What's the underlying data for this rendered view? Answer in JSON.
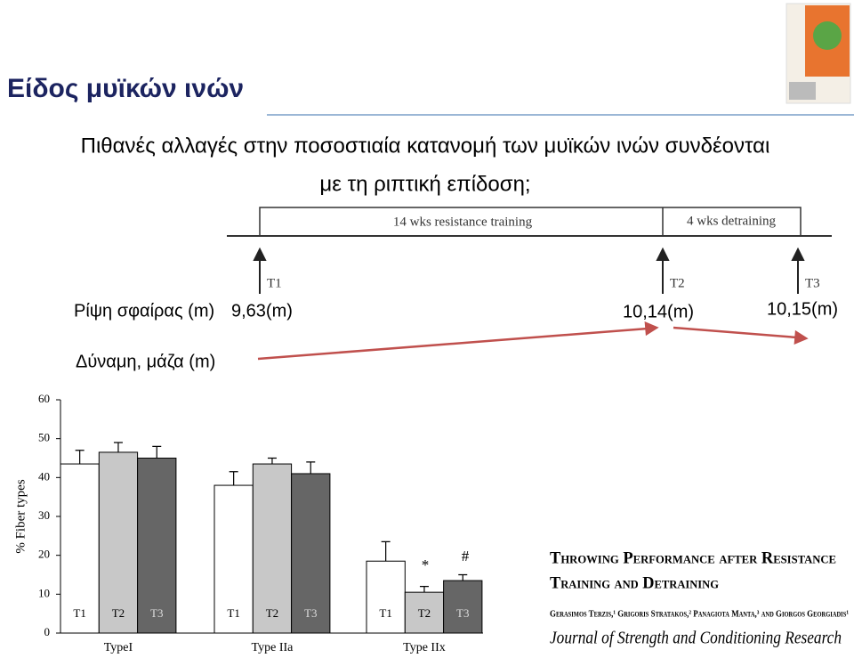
{
  "title": "Είδος μυϊκών ινών",
  "subtitle": [
    "Πιθανές αλλαγές στην ποσοστιαία κατανομή των μυϊκών ινών συνδέονται",
    "με τη ριπτική επίδοση;"
  ],
  "timeline": {
    "phases": [
      "14 wks resistance training",
      "4 wks detraining"
    ],
    "points": [
      "T1",
      "T2",
      "T3"
    ]
  },
  "performance": {
    "label": "Ρίψη σφαίρας (m)",
    "values": [
      "9,63(m)",
      "10,14(m)",
      "10,15(m)"
    ]
  },
  "strength_label": "Δύναμη, μάζα (m)",
  "citation": {
    "title_lines": [
      "Throwing Performance after Resistance",
      "Training and Detraining"
    ],
    "authors": "Gerasimos Terzis,¹ Grigoris Stratakos,² Panagiota Manta,³ and Giorgos Georgiadis¹",
    "journal": "Journal of Strength and Conditioning Research"
  },
  "chart_data": {
    "type": "bar",
    "ylabel": "% Fiber types",
    "categories": [
      "TypeI",
      "Type IIa",
      "Type IIx"
    ],
    "series": [
      {
        "name": "T1",
        "color": "#ffffff",
        "values": [
          43.5,
          38,
          18.5
        ],
        "errors": [
          3.5,
          3.5,
          5
        ]
      },
      {
        "name": "T2",
        "color": "#c8c8c8",
        "values": [
          46.5,
          43.5,
          10.5
        ],
        "errors": [
          2.5,
          1.5,
          1.5
        ]
      },
      {
        "name": "T3",
        "color": "#666666",
        "values": [
          45,
          41,
          13.5
        ],
        "errors": [
          3,
          3,
          1.5
        ]
      }
    ],
    "annotations": [
      "*",
      "#"
    ],
    "ylim": [
      0,
      60
    ],
    "yticks": [
      0,
      10,
      20,
      30,
      40,
      50,
      60
    ]
  }
}
